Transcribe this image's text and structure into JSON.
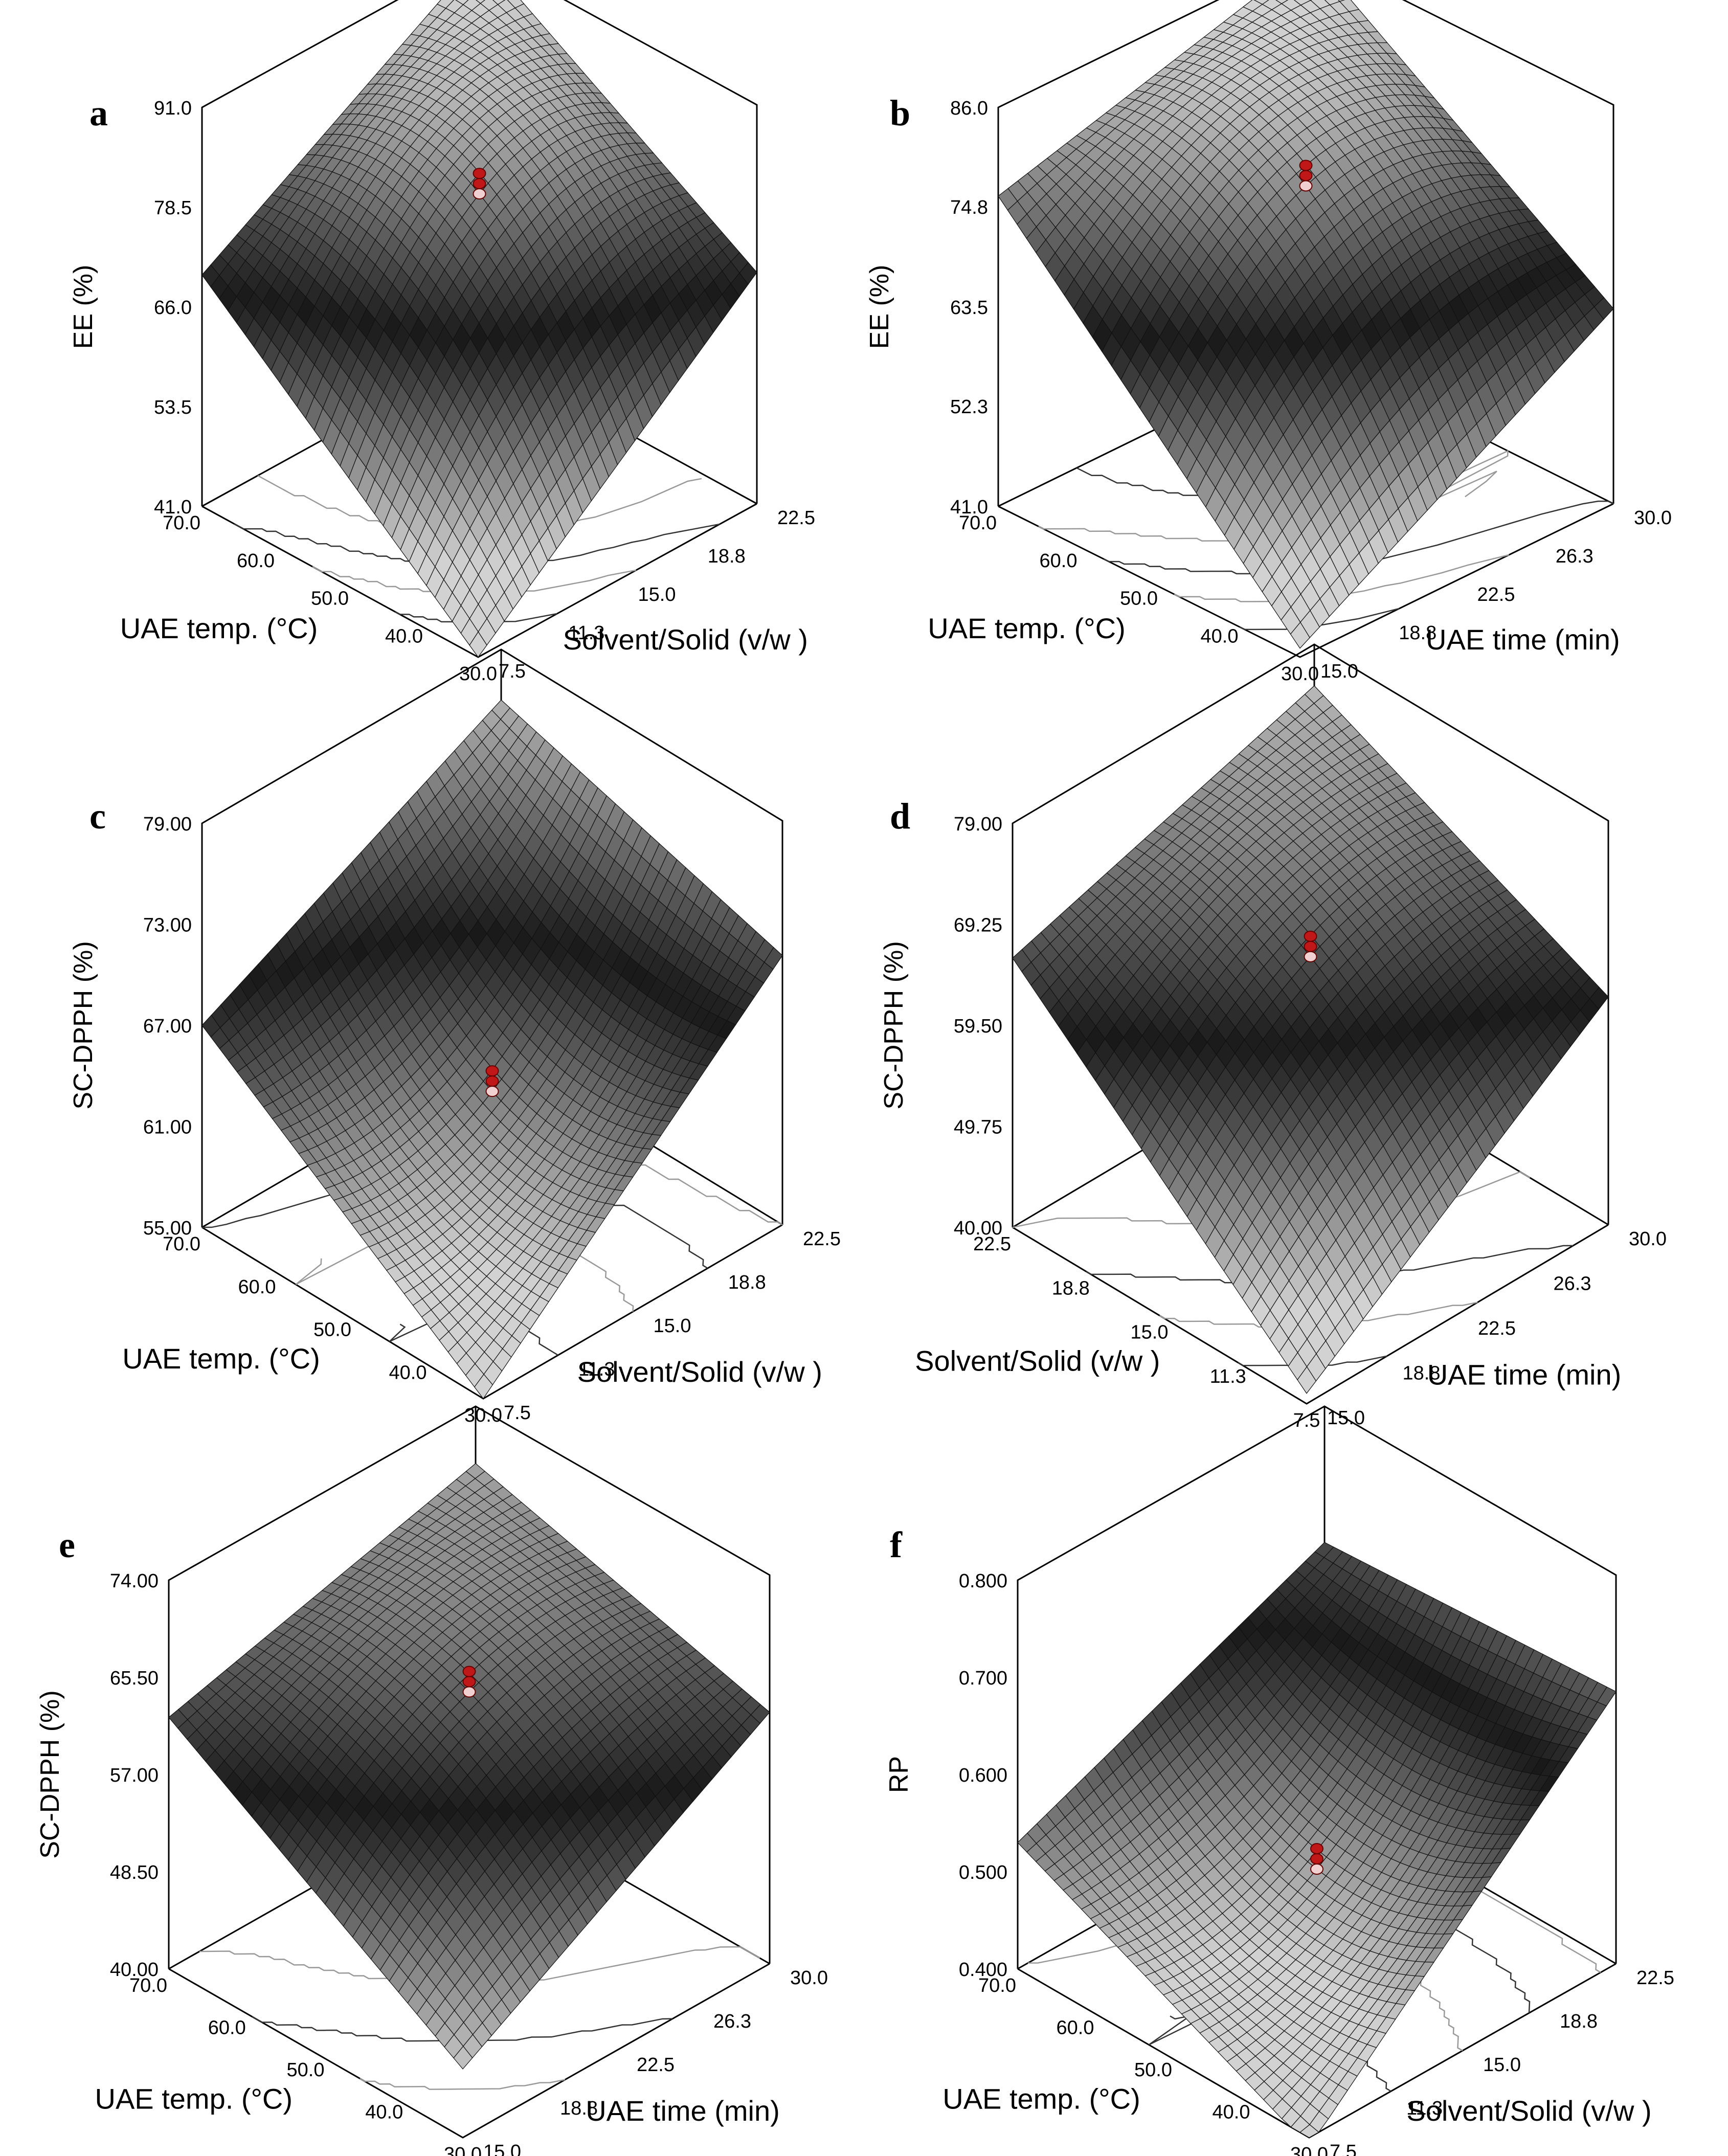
{
  "figure": {
    "panel_count": 6
  },
  "chart_data": [
    {
      "panel": "a",
      "type": "surface3d",
      "zlabel": "EE (%)",
      "zticks": [
        "91.0",
        "78.5",
        "66.0",
        "53.5",
        "41.0"
      ],
      "zlim": [
        41.0,
        91.0
      ],
      "xlabel": "UAE temp. (°C)",
      "xticks": [
        "70.0",
        "60.0",
        "50.0",
        "40.0",
        "30.0"
      ],
      "xlim": [
        30.0,
        70.0
      ],
      "ylabel": "Solvent/Solid (v/w )",
      "yticks": [
        "22.5",
        "18.8",
        "15.0",
        "11.3",
        "7.5"
      ],
      "ylim": [
        7.5,
        22.5
      ],
      "corners": {
        "x_high_y_low": 70,
        "x_high_y_high": 91,
        "x_low_y_high": 70,
        "x_low_y_low": 41,
        "center": 80
      },
      "experimental_points": 3
    },
    {
      "panel": "b",
      "type": "surface3d",
      "zlabel": "EE (%)",
      "zticks": [
        "86.0",
        "74.8",
        "63.5",
        "52.3",
        "41.0"
      ],
      "zlim": [
        41.0,
        86.0
      ],
      "xlabel": "UAE temp. (°C)",
      "xticks": [
        "70.0",
        "60.0",
        "50.0",
        "40.0",
        "30.0"
      ],
      "xlim": [
        30.0,
        70.0
      ],
      "ylabel": "UAE time (min)",
      "yticks": [
        "30.0",
        "26.3",
        "22.5",
        "18.8",
        "15.0"
      ],
      "ylim": [
        15.0,
        30.0
      ],
      "corners": {
        "x_high_y_low": 76,
        "x_high_y_high": 86,
        "x_low_y_high": 63,
        "x_low_y_low": 42,
        "center": 77
      },
      "experimental_points": 3
    },
    {
      "panel": "c",
      "type": "surface3d",
      "zlabel": "SC-DPPH (%)",
      "zticks": [
        "79.00",
        "73.00",
        "67.00",
        "61.00",
        "55.00"
      ],
      "zlim": [
        55.0,
        79.0
      ],
      "xlabel": "UAE temp. (°C)",
      "xticks": [
        "70.0",
        "60.0",
        "50.0",
        "40.0",
        "30.0"
      ],
      "xlim": [
        30.0,
        70.0
      ],
      "ylabel": "Solvent/Solid (v/w )",
      "yticks": [
        "22.5",
        "18.8",
        "15.0",
        "11.3",
        "7.5"
      ],
      "ylim": [
        7.5,
        22.5
      ],
      "corners": {
        "x_high_y_low": 67,
        "x_high_y_high": 76,
        "x_low_y_high": 71,
        "x_low_y_low": 55,
        "center": 63
      },
      "experimental_points": 3
    },
    {
      "panel": "d",
      "type": "surface3d",
      "zlabel": "SC-DPPH (%)",
      "zticks": [
        "79.00",
        "69.25",
        "59.50",
        "49.75",
        "40.00"
      ],
      "zlim": [
        40.0,
        79.0
      ],
      "xlabel": "Solvent/Solid (v/w )",
      "xticks": [
        "22.5",
        "18.8",
        "15.0",
        "11.3",
        "7.5"
      ],
      "xlim": [
        7.5,
        22.5
      ],
      "ylabel": "UAE time (min)",
      "yticks": [
        "30.0",
        "26.3",
        "22.5",
        "18.8",
        "15.0"
      ],
      "ylim": [
        15.0,
        30.0
      ],
      "corners": {
        "x_high_y_low": 66,
        "x_high_y_high": 75,
        "x_low_y_high": 62,
        "x_low_y_low": 41,
        "center": 66
      },
      "experimental_points": 3
    },
    {
      "panel": "e",
      "type": "surface3d",
      "zlabel": "SC-DPPH (%)",
      "zticks": [
        "74.00",
        "65.50",
        "57.00",
        "48.50",
        "40.00"
      ],
      "zlim": [
        40.0,
        74.0
      ],
      "xlabel": "UAE temp. (°C)",
      "xticks": [
        "70.0",
        "60.0",
        "50.0",
        "40.0",
        "30.0"
      ],
      "xlim": [
        30.0,
        70.0
      ],
      "ylabel": "UAE time (min)",
      "yticks": [
        "30.0",
        "26.3",
        "22.5",
        "18.8",
        "15.0"
      ],
      "ylim": [
        15.0,
        30.0
      ],
      "corners": {
        "x_high_y_low": 62,
        "x_high_y_high": 69,
        "x_low_y_high": 62,
        "x_low_y_low": 46,
        "center": 64
      },
      "experimental_points": 3
    },
    {
      "panel": "f",
      "type": "surface3d",
      "zlabel": "RP",
      "zticks": [
        "0.800",
        "0.700",
        "0.600",
        "0.500",
        "0.400"
      ],
      "zlim": [
        0.4,
        0.8
      ],
      "xlabel": "UAE temp. (°C)",
      "xticks": [
        "70.0",
        "60.0",
        "50.0",
        "40.0",
        "30.0"
      ],
      "xlim": [
        30.0,
        70.0
      ],
      "ylabel": "Solvent/Solid (v/w )",
      "yticks": [
        "22.5",
        "18.8",
        "15.0",
        "11.3",
        "7.5"
      ],
      "ylim": [
        7.5,
        22.5
      ],
      "corners": {
        "x_high_y_low": 0.53,
        "x_high_y_high": 0.66,
        "x_low_y_high": 0.68,
        "x_low_y_low": 0.39,
        "center": 0.5
      },
      "experimental_points": 3
    }
  ]
}
